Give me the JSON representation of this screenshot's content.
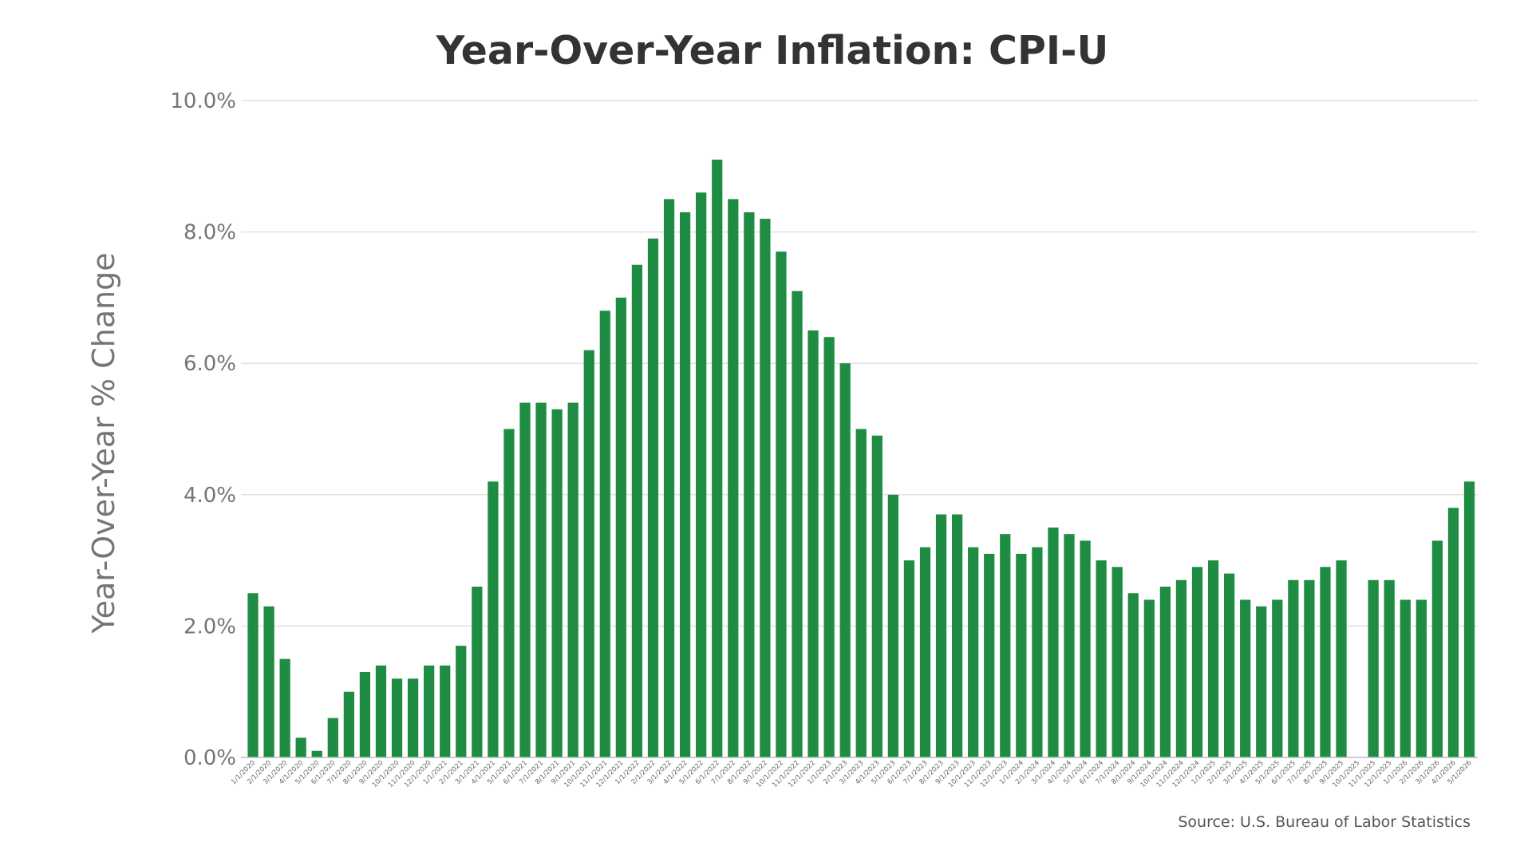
{
  "chart_data": {
    "type": "bar",
    "title": "Year-Over-Year Inflation: CPI-U",
    "ylabel": "Year-Over-Year % Change",
    "xlabel": "",
    "ylim": [
      0,
      10
    ],
    "yticks": [
      "0.0%",
      "2.0%",
      "4.0%",
      "6.0%",
      "8.0%",
      "10.0%"
    ],
    "ytick_values": [
      0,
      2,
      4,
      6,
      8,
      10
    ],
    "grid": true,
    "bar_color": "#1e8c43",
    "source": "Source: U.S. Bureau of Labor Statistics",
    "categories": [
      "1/1/2020",
      "2/1/2020",
      "3/1/2020",
      "4/1/2020",
      "5/1/2020",
      "6/1/2020",
      "7/1/2020",
      "8/1/2020",
      "9/1/2020",
      "10/1/2020",
      "11/1/2020",
      "12/1/2020",
      "1/1/2021",
      "2/1/2021",
      "3/1/2021",
      "4/1/2021",
      "5/1/2021",
      "6/1/2021",
      "7/1/2021",
      "8/1/2021",
      "9/1/2021",
      "10/1/2021",
      "11/1/2021",
      "12/1/2021",
      "1/1/2022",
      "2/1/2022",
      "3/1/2022",
      "4/1/2022",
      "5/1/2022",
      "6/1/2022",
      "7/1/2022",
      "8/1/2022",
      "9/1/2022",
      "10/1/2022",
      "11/1/2022",
      "12/1/2022",
      "1/1/2023",
      "2/1/2023",
      "3/1/2023",
      "4/1/2023",
      "5/1/2023",
      "6/1/2023",
      "7/1/2023",
      "8/1/2023",
      "9/1/2023",
      "10/1/2023",
      "11/1/2023",
      "12/1/2023",
      "1/1/2024",
      "2/1/2024",
      "3/1/2024",
      "4/1/2024",
      "5/1/2024",
      "6/1/2024",
      "7/1/2024",
      "8/1/2024",
      "9/1/2024",
      "10/1/2024",
      "11/1/2024",
      "12/1/2024",
      "1/1/2025",
      "2/1/2025",
      "3/1/2025",
      "4/1/2025",
      "5/1/2025",
      "6/1/2025",
      "7/1/2025",
      "8/1/2025",
      "9/1/2025",
      "10/1/2025",
      "11/1/2025",
      "12/1/2025",
      "1/1/2026",
      "2/1/2026",
      "3/1/2026",
      "4/1/2026",
      "5/1/2026"
    ],
    "values": [
      2.5,
      2.3,
      1.5,
      0.3,
      0.1,
      0.6,
      1.0,
      1.3,
      1.4,
      1.2,
      1.2,
      1.4,
      1.4,
      1.7,
      2.6,
      4.2,
      5.0,
      5.4,
      5.4,
      5.3,
      5.4,
      6.2,
      6.8,
      7.0,
      7.5,
      7.9,
      8.5,
      8.3,
      8.6,
      9.1,
      8.5,
      8.3,
      8.2,
      7.7,
      7.1,
      6.5,
      6.4,
      6.0,
      5.0,
      4.9,
      4.0,
      3.0,
      3.2,
      3.7,
      3.7,
      3.2,
      3.1,
      3.4,
      3.1,
      3.2,
      3.5,
      3.4,
      3.3,
      3.0,
      2.9,
      2.5,
      2.4,
      2.6,
      2.7,
      2.9,
      3.0,
      2.8,
      2.4,
      2.3,
      2.4,
      2.7,
      2.7,
      2.9,
      3.0,
      null,
      2.7,
      2.7,
      2.4,
      2.4,
      3.3,
      3.8,
      4.2
    ]
  }
}
